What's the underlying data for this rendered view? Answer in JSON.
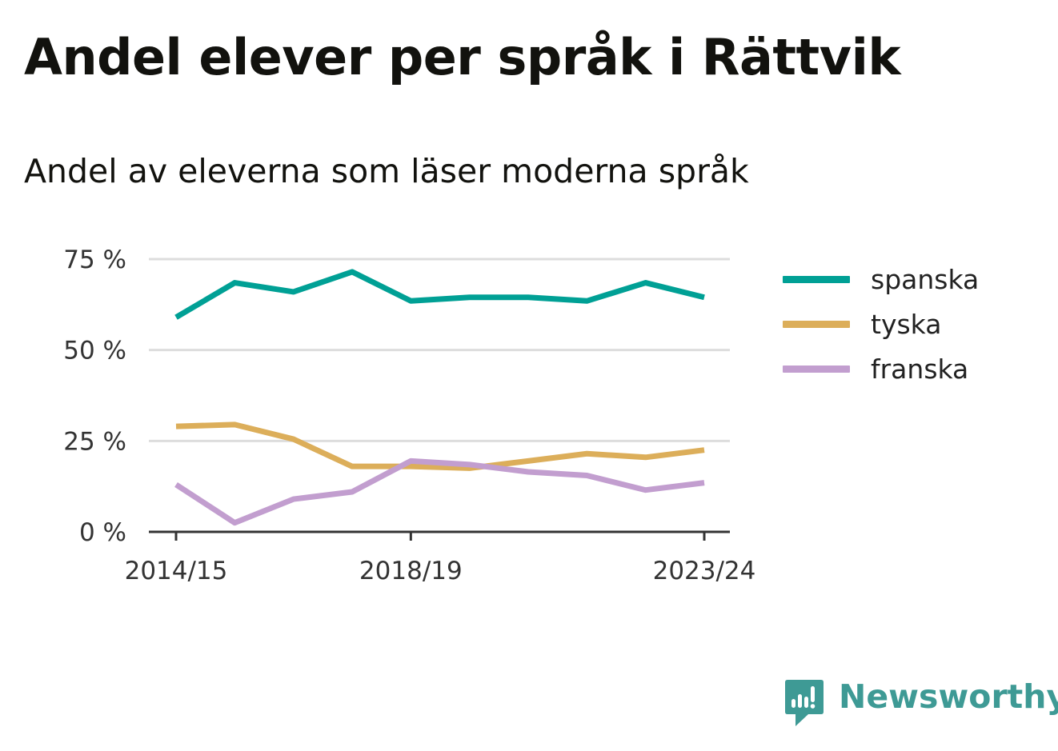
{
  "title": "Andel elever per språk i Rättvik",
  "subtitle": "Andel av eleverna som läser moderna språk",
  "brand": {
    "name": "Newsworthy",
    "icon": "newsworthy-logo-icon",
    "color": "#3e9a95"
  },
  "chart_data": {
    "type": "line",
    "x": [
      "2014/15",
      "2015/16",
      "2016/17",
      "2017/18",
      "2018/19",
      "2019/20",
      "2020/21",
      "2021/22",
      "2022/23",
      "2023/24"
    ],
    "x_tick_labels": [
      "2014/15",
      "2018/19",
      "2023/24"
    ],
    "y_ticks": [
      0,
      25,
      50,
      75
    ],
    "y_tick_labels": [
      "0 %",
      "25 %",
      "50 %",
      "75 %"
    ],
    "ylim": [
      0,
      75
    ],
    "grid": true,
    "legend_position": "right",
    "series": [
      {
        "name": "spanska",
        "color": "#00a095",
        "values": [
          59,
          68.5,
          66,
          71.5,
          63.5,
          64.5,
          64.5,
          63.5,
          68.5,
          64.5
        ]
      },
      {
        "name": "tyska",
        "color": "#dcae5a",
        "values": [
          29,
          29.5,
          25.5,
          18,
          18,
          17.5,
          19.5,
          21.5,
          20.5,
          22.5
        ]
      },
      {
        "name": "franska",
        "color": "#c29ecf",
        "values": [
          13,
          2.5,
          9,
          11,
          19.5,
          18.5,
          16.5,
          15.5,
          11.5,
          13.5
        ]
      }
    ]
  }
}
